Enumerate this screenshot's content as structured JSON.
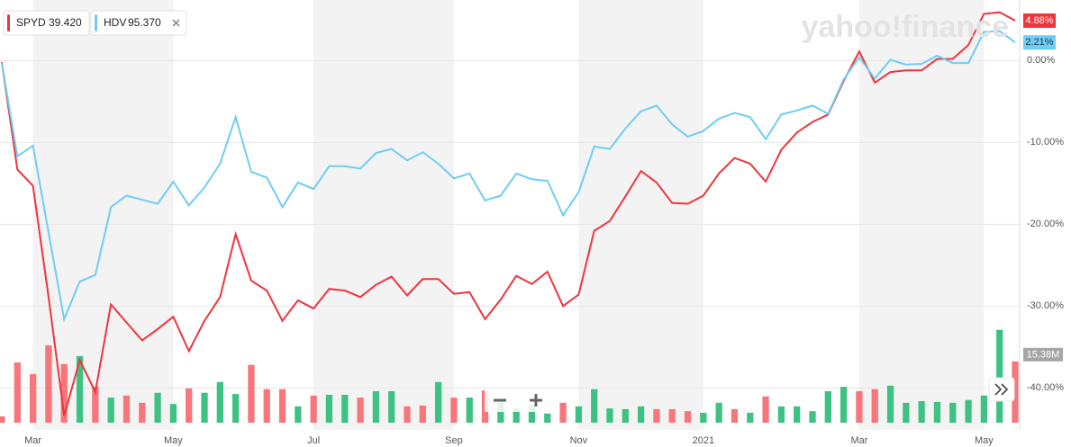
{
  "chart_data": {
    "type": "line",
    "brand": "yahoo!finance",
    "categories": [
      null,
      null,
      "Mar",
      null,
      null,
      null,
      null,
      null,
      null,
      null,
      null,
      "May",
      null,
      null,
      null,
      null,
      null,
      null,
      null,
      null,
      "Jul",
      null,
      null,
      null,
      null,
      null,
      null,
      null,
      null,
      "Sep",
      null,
      null,
      null,
      null,
      null,
      null,
      null,
      "Nov",
      null,
      null,
      null,
      null,
      null,
      null,
      null,
      "2021",
      null,
      null,
      null,
      null,
      null,
      null,
      null,
      null,
      null,
      "Mar",
      null,
      null,
      null,
      null,
      null,
      null,
      null,
      "May",
      null,
      null
    ],
    "series": [
      {
        "name": "SPYD",
        "price": "39.420",
        "color": "#f0343c",
        "end_label": "4.88%",
        "values": [
          -0.2,
          -13.3,
          -15.3,
          -28.9,
          -43.4,
          -36.6,
          -40.5,
          -29.8,
          -32,
          -34.2,
          -32.8,
          -31.3,
          -35.5,
          -31.8,
          -28.9,
          -21.2,
          -26.9,
          -28.1,
          -31.8,
          -29.3,
          -30.3,
          -27.9,
          -28.1,
          -28.9,
          -27.4,
          -26.4,
          -28.7,
          -26.7,
          -26.7,
          -28.5,
          -28.3,
          -31.6,
          -29.2,
          -26.3,
          -27.3,
          -25.8,
          -30,
          -28.6,
          -20.8,
          -19.6,
          -16.6,
          -13.5,
          -14.9,
          -17.4,
          -17.5,
          -16.5,
          -13.8,
          -11.9,
          -12.6,
          -14.8,
          -10.9,
          -8.8,
          -7.5,
          -6.6,
          -2.5,
          1.1,
          -2.7,
          -1.4,
          -1.2,
          -1.2,
          0.2,
          0.2,
          1.9,
          5.7,
          5.9,
          4.88
        ]
      },
      {
        "name": "HDV",
        "price": "95.370",
        "color": "#6fcdf3",
        "end_label": "2.21%",
        "values": [
          -0.3,
          -11.7,
          -10.4,
          -21,
          -31.6,
          -27,
          -26.2,
          -17.9,
          -16.5,
          -17,
          -17.5,
          -14.8,
          -17.7,
          -15.5,
          -12.6,
          -6.9,
          -13.6,
          -14.3,
          -17.9,
          -14.9,
          -15.7,
          -12.9,
          -12.9,
          -13.2,
          -11.3,
          -10.8,
          -12.2,
          -11.2,
          -12.6,
          -14.4,
          -13.8,
          -17.1,
          -16.5,
          -13.8,
          -14.5,
          -14.7,
          -18.9,
          -16.1,
          -10.5,
          -10.8,
          -8.3,
          -6.2,
          -5.5,
          -7.8,
          -9.3,
          -8.6,
          -7.1,
          -6.4,
          -6.9,
          -9.6,
          -6.6,
          -6.1,
          -5.5,
          -6.5,
          -2.3,
          0.4,
          -2.2,
          0.1,
          -0.5,
          -0.4,
          0.6,
          -0.3,
          -0.3,
          3.5,
          3.6,
          2.21
        ]
      }
    ],
    "ylim": [
      -44.8,
      7.4
    ],
    "yticks": [
      {
        "value": 0,
        "label": "0.00%"
      },
      {
        "value": -10,
        "label": "-10.00%"
      },
      {
        "value": -20,
        "label": "-20.00%"
      },
      {
        "value": -30,
        "label": "-30.00%"
      },
      {
        "value": -40,
        "label": "-40.00%"
      }
    ],
    "grid": true,
    "volume": {
      "ylim": [
        0,
        106
      ],
      "last_label": "15.38M",
      "values": [
        1.6,
        15.1,
        12.2,
        19.4,
        14.7,
        16.7,
        9.0,
        6.3,
        6.8,
        5.0,
        7.5,
        4.7,
        8.6,
        7.5,
        10.2,
        7.2,
        14.5,
        8.4,
        8.4,
        4.1,
        6.8,
        7.0,
        7.0,
        6.3,
        7.9,
        7.9,
        4.1,
        4.3,
        10.2,
        6.3,
        6.3,
        8.1,
        5.4,
        3.6,
        4.5,
        2.3,
        5.0,
        4.1,
        8.4,
        3.6,
        3.4,
        4.1,
        3.4,
        3.4,
        2.9,
        2.5,
        5.0,
        3.4,
        2.5,
        6.6,
        4.1,
        4.1,
        2.9,
        7.9,
        9.0,
        7.9,
        8.4,
        9.3,
        5.0,
        5.4,
        5.2,
        5.0,
        5.7,
        6.8,
        23.3,
        15.38
      ],
      "colors": [
        "#f7767c",
        "#f7767c",
        "#f7767c",
        "#f7767c",
        "#f7767c",
        "#3ec283",
        "#f7767c",
        "#3ec283",
        "#f7767c",
        "#f7767c",
        "#3ec283",
        "#3ec283",
        "#f7767c",
        "#3ec283",
        "#3ec283",
        "#3ec283",
        "#f7767c",
        "#f7767c",
        "#f7767c",
        "#3ec283",
        "#f7767c",
        "#3ec283",
        "#3ec283",
        "#f7767c",
        "#3ec283",
        "#3ec283",
        "#f7767c",
        "#f7767c",
        "#3ec283",
        "#f7767c",
        "#3ec283",
        "#f7767c",
        "#3ec283",
        "#3ec283",
        "#3ec283",
        "#3ec283",
        "#f7767c",
        "#3ec283",
        "#3ec283",
        "#3ec283",
        "#3ec283",
        "#3ec283",
        "#f7767c",
        "#f7767c",
        "#f7767c",
        "#3ec283",
        "#3ec283",
        "#f7767c",
        "#3ec283",
        "#f7767c",
        "#3ec283",
        "#3ec283",
        "#3ec283",
        "#3ec283",
        "#3ec283",
        "#f7767c",
        "#f7767c",
        "#3ec283",
        "#3ec283",
        "#3ec283",
        "#3ec283",
        "#3ec283",
        "#3ec283",
        "#3ec283",
        "#3ec283",
        "#f7767c"
      ]
    }
  }
}
